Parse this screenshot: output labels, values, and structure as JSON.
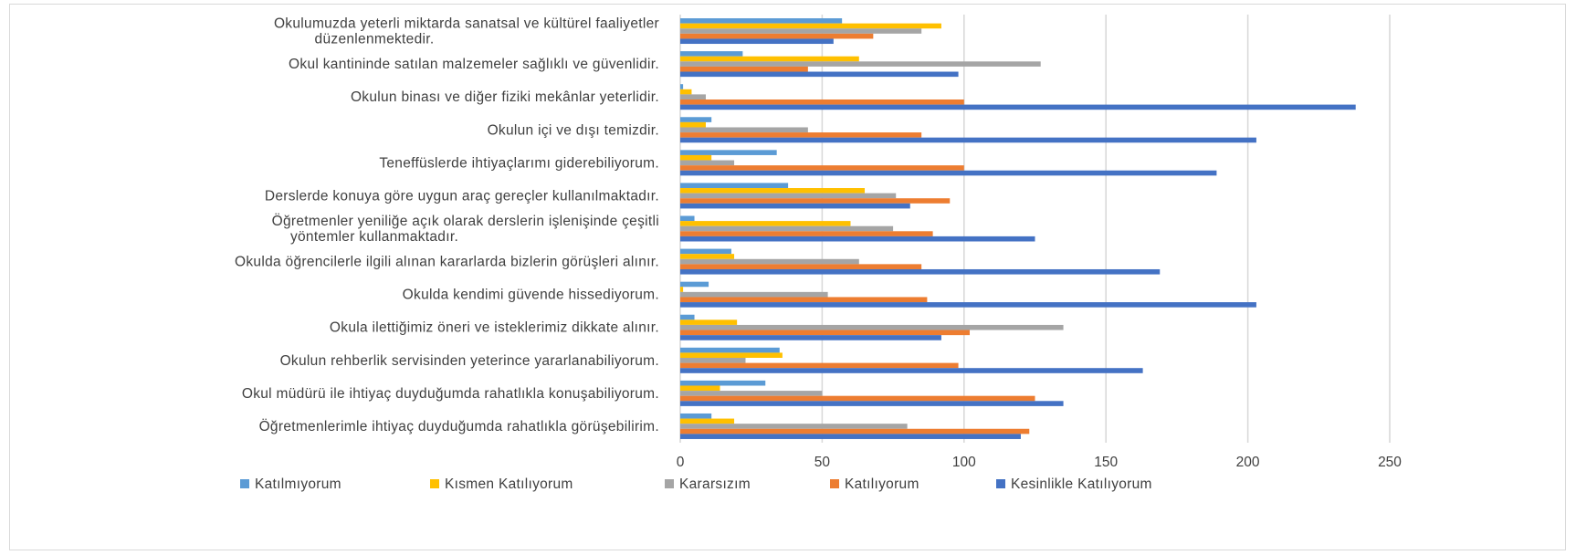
{
  "chart_data": {
    "type": "bar",
    "orientation": "horizontal",
    "categories": [
      [
        "Okulumuzda yeterli miktarda sanatsal ve kültürel faaliyetler",
        "düzenlenmektedir."
      ],
      [
        "Okul kantininde satılan malzemeler sağlıklı ve güvenlidir."
      ],
      [
        "Okulun binası ve diğer fiziki mekânlar yeterlidir."
      ],
      [
        "Okulun içi ve dışı temizdir."
      ],
      [
        "Teneffüslerde ihtiyaçlarımı giderebiliyorum."
      ],
      [
        "Derslerde konuya göre uygun araç gereçler kullanılmaktadır."
      ],
      [
        "Öğretmenler yeniliğe açık olarak derslerin işlenişinde çeşitli",
        "yöntemler kullanmaktadır."
      ],
      [
        "Okulda öğrencilerle ilgili alınan kararlarda bizlerin görüşleri alınır."
      ],
      [
        "Okulda kendimi güvende hissediyorum."
      ],
      [
        "Okula ilettiğimiz öneri ve isteklerimiz dikkate alınır."
      ],
      [
        "Okulun rehberlik servisinden yeterince yararlanabiliyorum."
      ],
      [
        "Okul müdürü ile ihtiyaç duyduğumda rahatlıkla konuşabiliyorum."
      ],
      [
        "Öğretmenlerimle ihtiyaç duyduğumda rahatlıkla görüşebilirim."
      ]
    ],
    "series": [
      {
        "name": "Katılmıyorum",
        "color": "#5B9BD5",
        "values": [
          57,
          22,
          1,
          11,
          34,
          38,
          5,
          18,
          10,
          5,
          35,
          30,
          11
        ]
      },
      {
        "name": "Kısmen Katılıyorum",
        "color": "#FFC000",
        "values": [
          92,
          63,
          4,
          9,
          11,
          65,
          60,
          19,
          1,
          20,
          36,
          14,
          19
        ]
      },
      {
        "name": "Kararsızım",
        "color": "#A5A5A5",
        "values": [
          85,
          127,
          9,
          45,
          19,
          76,
          75,
          63,
          52,
          135,
          23,
          50,
          80
        ]
      },
      {
        "name": "Katılıyorum",
        "color": "#ED7D31",
        "values": [
          68,
          45,
          100,
          85,
          100,
          95,
          89,
          85,
          87,
          102,
          98,
          125,
          123
        ]
      },
      {
        "name": "Kesinlikle Katılıyorum",
        "color": "#4472C4",
        "values": [
          54,
          98,
          238,
          203,
          189,
          81,
          125,
          169,
          203,
          92,
          163,
          135,
          120
        ]
      }
    ],
    "xlim": [
      0,
      250
    ],
    "x_ticks": [
      "0",
      "50",
      "100",
      "150",
      "200",
      "250"
    ],
    "grid": true,
    "legend_position": "bottom"
  }
}
